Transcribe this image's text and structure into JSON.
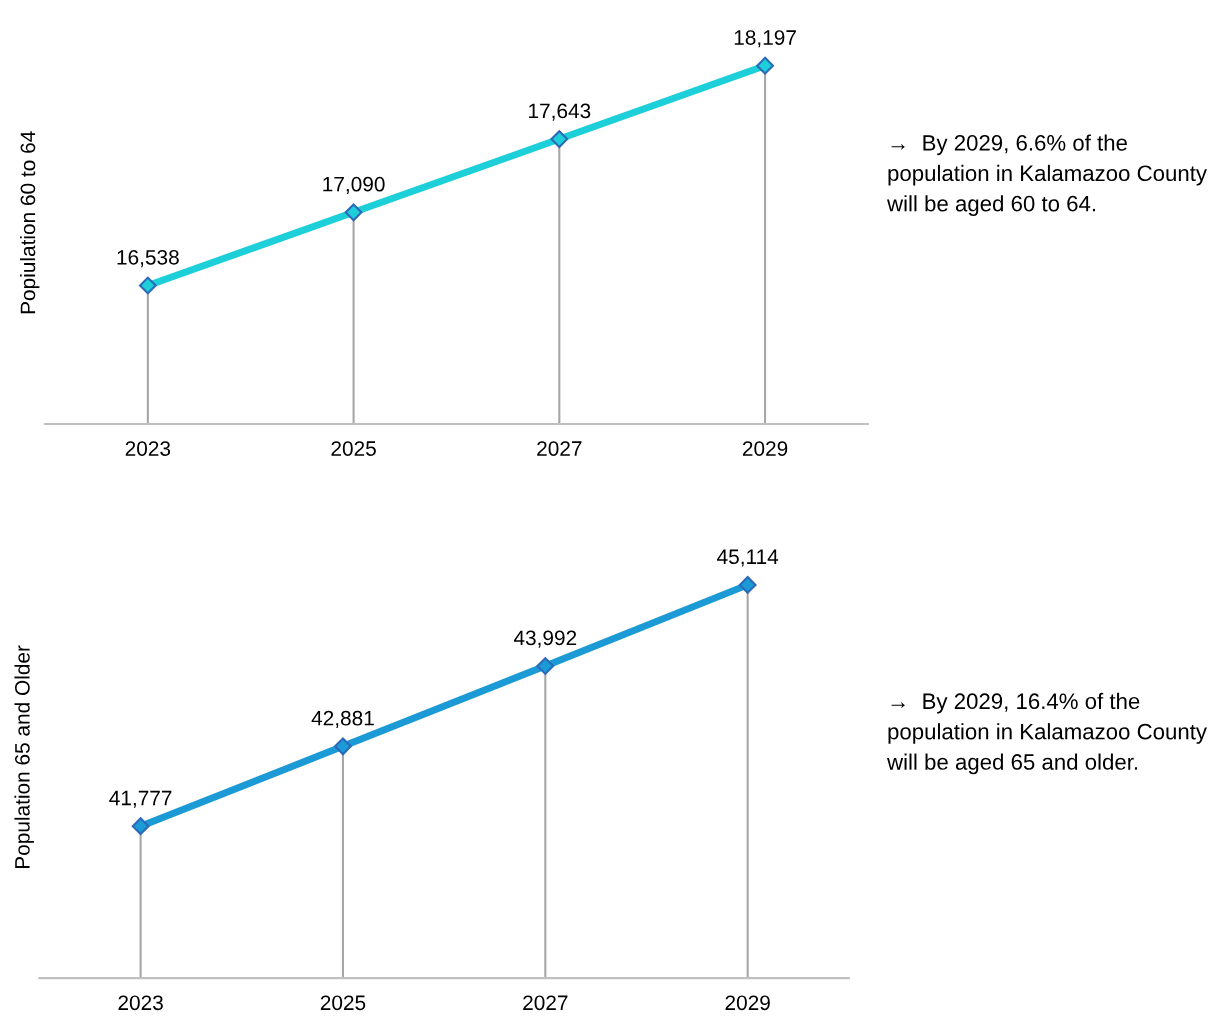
{
  "chart_data": [
    {
      "type": "line",
      "ylabel": "Popiulation 60 to 64",
      "categories": [
        "2023",
        "2025",
        "2027",
        "2029"
      ],
      "relative": false,
      "tick_labels": "x",
      "marker": "diamond",
      "line_style": "solid",
      "grid": "x",
      "series": [
        {
          "color": "#1ccfd9",
          "values": [
            16538,
            17090,
            17643,
            18197
          ],
          "value_labels": [
            "16,538",
            "17,090",
            "17,643",
            "18,197"
          ]
        }
      ],
      "annotations": [
        "→  By 2029, 6.6% of the population in Kalamazoo County will be aged 60 to 64."
      ]
    },
    {
      "type": "line",
      "ylabel": "Population 65 and Older",
      "categories": [
        "2023",
        "2025",
        "2027",
        "2029"
      ],
      "relative": false,
      "tick_labels": "x",
      "marker": "diamond",
      "line_style": "solid",
      "grid": "x",
      "series": [
        {
          "color": "#1b9ad6",
          "values": [
            41777,
            42881,
            43992,
            45114
          ],
          "value_labels": [
            "41,777",
            "42,881",
            "43,992",
            "45,114"
          ]
        }
      ],
      "annotations": [
        "→  By 2029, 16.4% of the population in Kalamazoo County will be aged 65 and older."
      ]
    }
  ]
}
